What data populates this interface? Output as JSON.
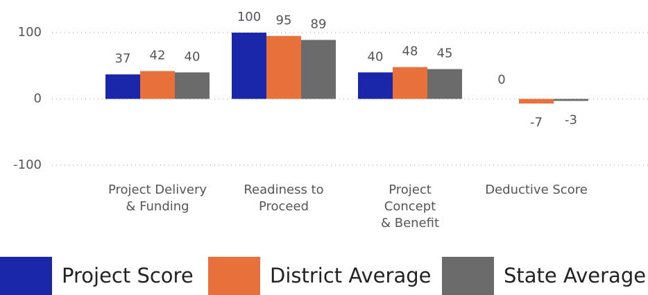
{
  "chart_data": {
    "type": "bar",
    "categories": [
      "Project Delivery & Funding",
      "Readiness to Proceed",
      "Project Concept & Benefit",
      "Deductive Score"
    ],
    "series": [
      {
        "name": "Project Score",
        "color": "#1a27a8",
        "values": [
          37,
          100,
          40,
          0
        ]
      },
      {
        "name": "District Average",
        "color": "#e8703a",
        "values": [
          42,
          95,
          48,
          -7
        ]
      },
      {
        "name": "State Average",
        "color": "#6b6b6b",
        "values": [
          40,
          89,
          45,
          -3
        ]
      }
    ],
    "ylim": [
      -100,
      100
    ],
    "yticks": [
      -100,
      0,
      100
    ],
    "grid": true,
    "legend": "bottom"
  }
}
